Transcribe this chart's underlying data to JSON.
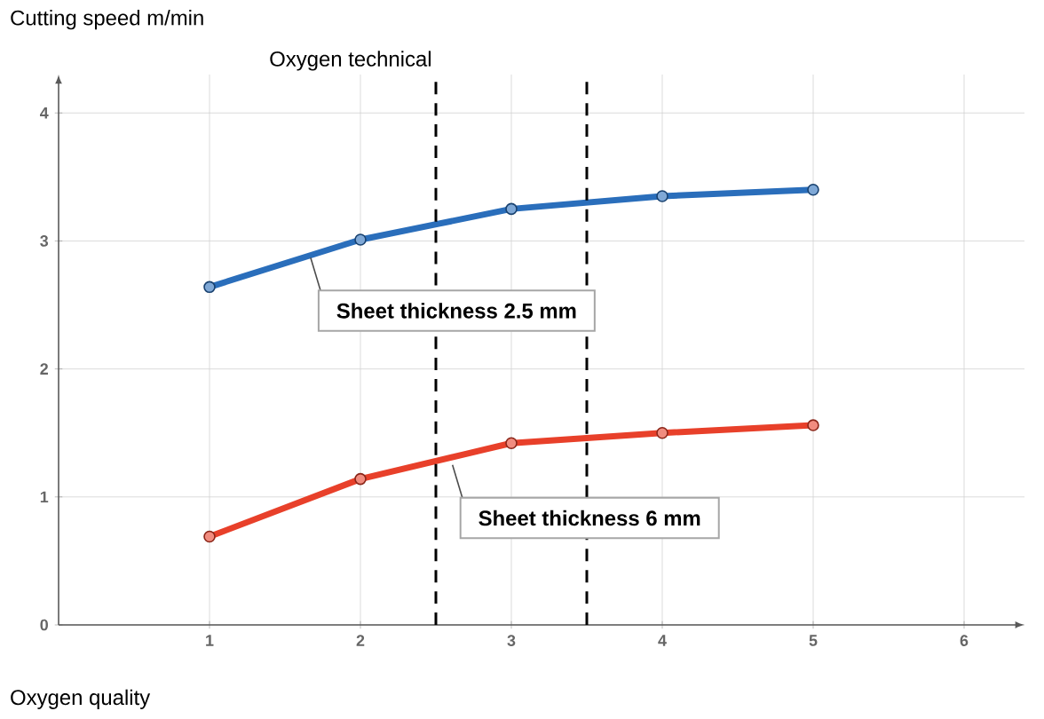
{
  "chart_data": {
    "type": "line",
    "ylabel": "Cutting speed m/min",
    "xlabel": "Oxygen quality",
    "x": [
      1,
      2,
      3,
      4,
      5
    ],
    "series": [
      {
        "color": "#2a6ebb",
        "values": [
          2.64,
          3.01,
          3.25,
          3.35,
          3.4
        ]
      },
      {
        "color": "#e8402a",
        "values": [
          0.69,
          1.14,
          1.42,
          1.5,
          1.56
        ]
      }
    ],
    "xlim": [
      0,
      6.4
    ],
    "ylim": [
      0,
      4.3
    ],
    "xticks": [
      1,
      2,
      3,
      4,
      5,
      6
    ],
    "yticks": [
      0,
      1,
      2,
      3,
      4
    ],
    "grid": true,
    "marker": "circle",
    "line_style": "solid",
    "ref_lines": [
      {
        "axis": "x",
        "value": 2.5,
        "label": "Oxygen technical",
        "line_style": "dashed"
      },
      {
        "axis": "x",
        "value": 3.5,
        "line_style": "dashed"
      }
    ],
    "annotations": [
      {
        "text": "Sheet thickness 2.5 mm",
        "x": 1.67,
        "y": 2.87
      },
      {
        "text": "Sheet thickness 6 mm",
        "x": 2.61,
        "y": 1.25
      }
    ]
  }
}
